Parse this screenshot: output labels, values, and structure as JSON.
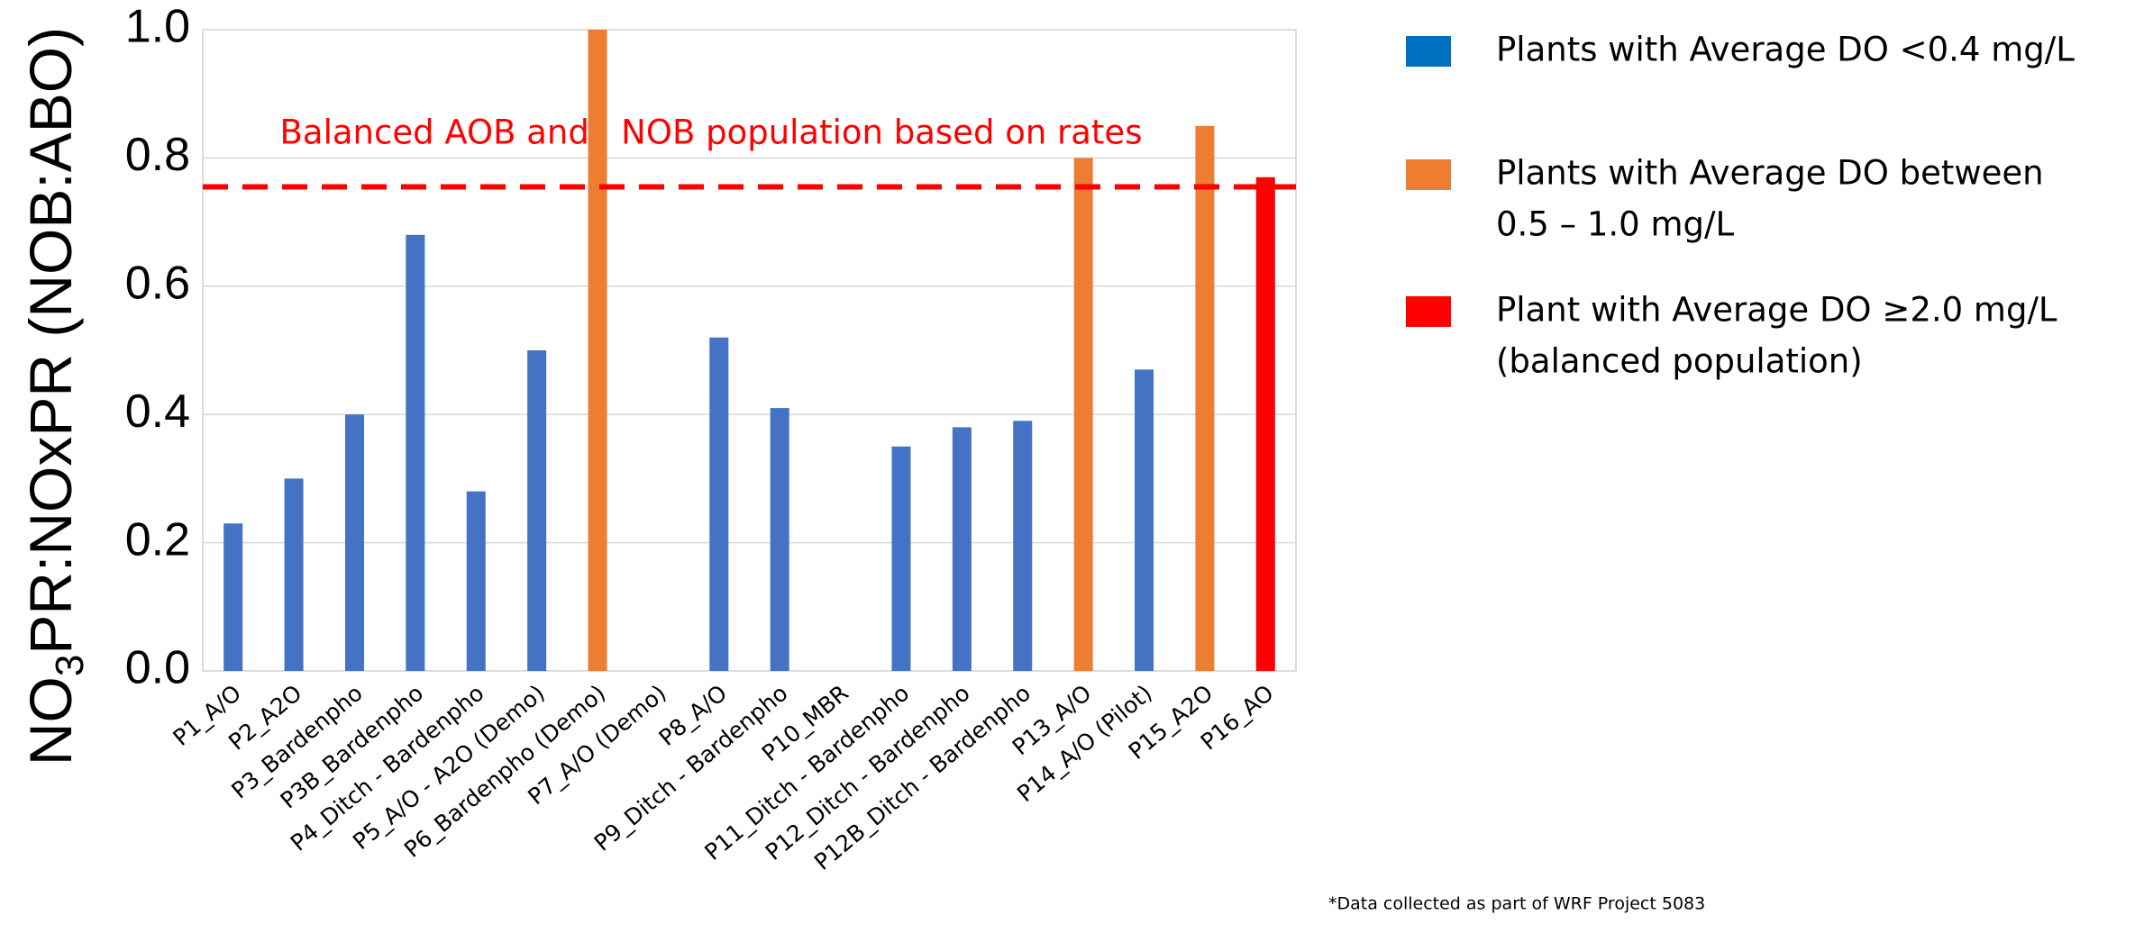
{
  "chart_data": {
    "type": "bar",
    "ylabel_parts": [
      "NO",
      "3",
      "PR:NOxPR (NOB:ABO)"
    ],
    "categories": [
      "P1_A/O",
      "P2_A2O",
      "P3_Bardenpho",
      "P3B_Bardenpho",
      "P4_Ditch - Bardenpho",
      "P5_A/O - A2O (Demo)",
      "P6_Bardenpho (Demo)",
      "P7_A/O (Demo)",
      "P8_A/O",
      "P9_Ditch - Bardenpho",
      "P10_MBR",
      "P11_Ditch - Bardenpho",
      "P12_Ditch - Bardenpho",
      "P12B_Ditch - Bardenpho",
      "P13_A/O",
      "P14_A/O (Pilot)",
      "P15_A2O",
      "P16_AO"
    ],
    "values": [
      0.23,
      0.3,
      0.4,
      0.68,
      0.28,
      0.5,
      1.0,
      null,
      0.52,
      0.41,
      null,
      0.35,
      0.38,
      0.39,
      0.8,
      0.47,
      0.85,
      0.77
    ],
    "colors": [
      "#4472c4",
      "#4472c4",
      "#4472c4",
      "#4472c4",
      "#4472c4",
      "#4472c4",
      "#ed7d31",
      "#4472c4",
      "#4472c4",
      "#4472c4",
      "#4472c4",
      "#4472c4",
      "#4472c4",
      "#4472c4",
      "#ed7d31",
      "#4472c4",
      "#ed7d31",
      "#ff0000"
    ],
    "ylim": [
      0,
      1.0
    ],
    "yticks": [
      {
        "value": 0,
        "label": "0.0"
      },
      0.2,
      0.4,
      0.6,
      0.8,
      {
        "value": 1.0,
        "label": "1.0"
      }
    ],
    "grid": true,
    "reference_line": {
      "value": 0.755,
      "color": "#ff0000",
      "label": "Balanced AOB and   NOB population based on rates"
    },
    "legend": [
      {
        "lines": [
          "Plants with Average DO <0.4 mg/L"
        ],
        "color": "#0070c0"
      },
      {
        "lines": [
          "Plants with Average DO between",
          "0.5 – 1.0 mg/L"
        ],
        "color": "#ed7d31"
      },
      {
        "lines": [
          "Plant with Average DO ≥2.0 mg/L",
          "(balanced population)"
        ],
        "color": "#ff0000"
      }
    ],
    "footnote": "*Data collected as part of WRF Project 5083"
  }
}
